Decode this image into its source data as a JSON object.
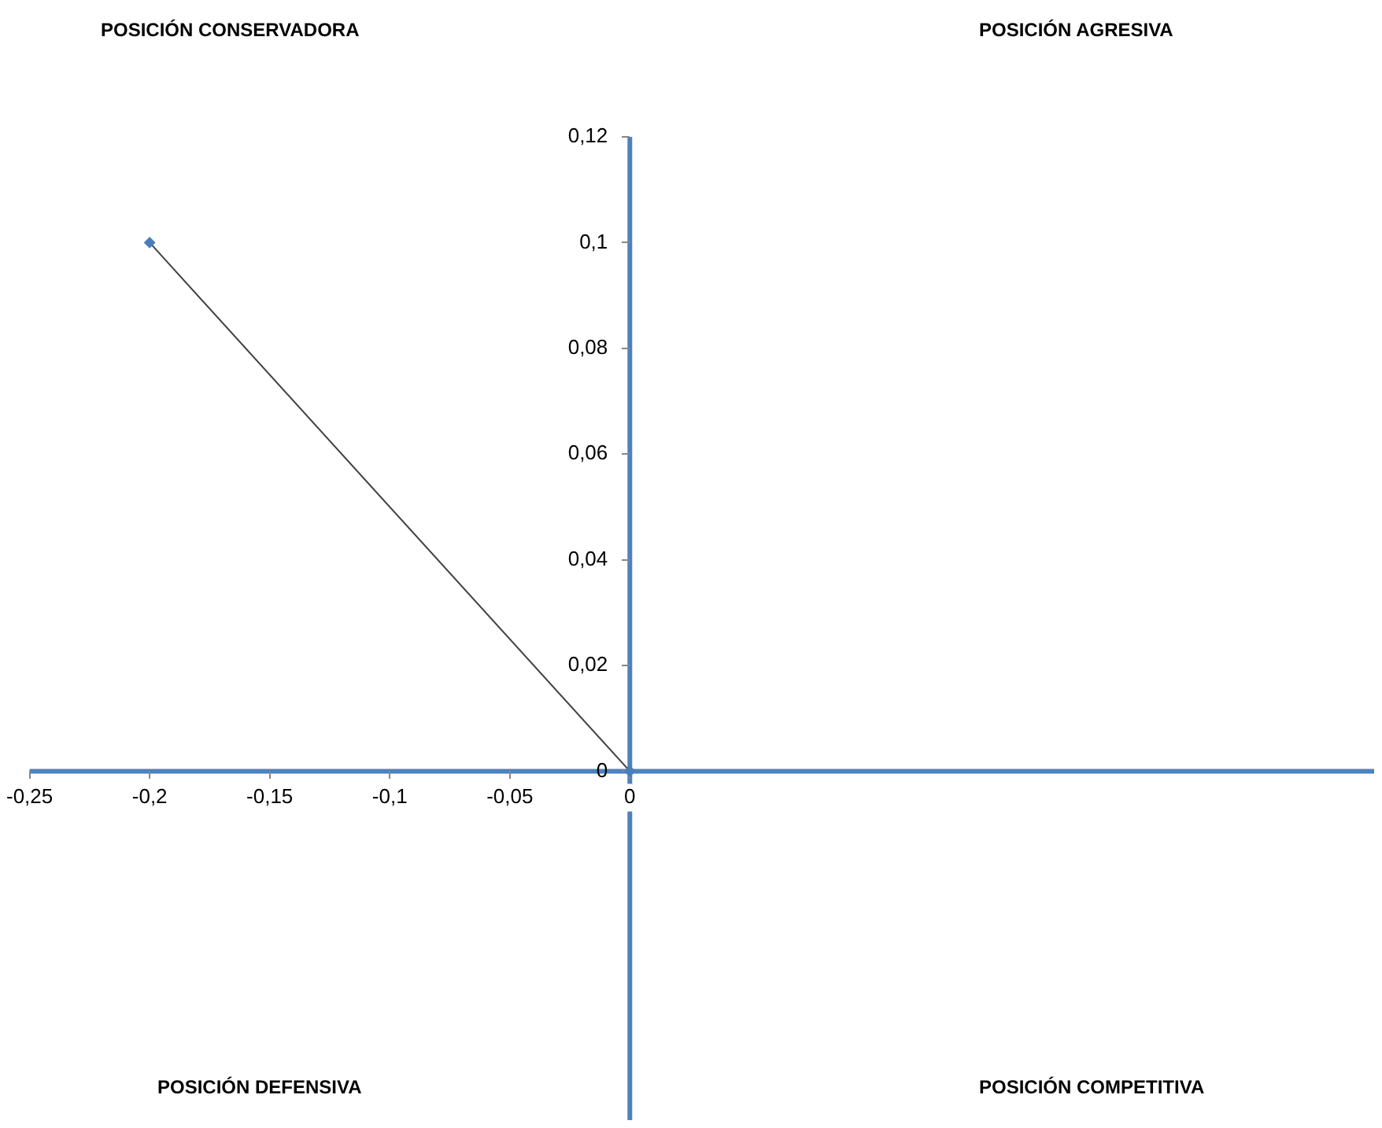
{
  "chart_data": {
    "type": "line",
    "x": [
      -0.2,
      0
    ],
    "series": [
      {
        "color": "#404040",
        "values": [
          0.1,
          0
        ]
      }
    ],
    "xlim": [
      -0.25,
      0.31
    ],
    "ylim": [
      -0.066,
      0.12
    ],
    "xticks": [
      {
        "value": -0.25,
        "label": "-0,25"
      },
      {
        "value": -0.2,
        "label": "-0,2"
      },
      {
        "value": -0.15,
        "label": "-0,15"
      },
      {
        "value": -0.1,
        "label": "-0,1"
      },
      {
        "value": -0.05,
        "label": "-0,05"
      },
      {
        "value": 0,
        "label": "0"
      }
    ],
    "yticks": [
      {
        "value": 0,
        "label": "0"
      },
      {
        "value": 0.02,
        "label": "0,02"
      },
      {
        "value": 0.04,
        "label": "0,04"
      },
      {
        "value": 0.06,
        "label": "0,06"
      },
      {
        "value": 0.08,
        "label": "0,08"
      },
      {
        "value": 0.1,
        "label": "0,1"
      },
      {
        "value": 0.12,
        "label": "0,12"
      }
    ],
    "annotations": [
      "POSICIÓN CONSERVADORA",
      "POSICIÓN AGRESIVA",
      "POSICIÓN DEFENSIVA",
      "POSICIÓN COMPETITIVA"
    ],
    "marker": "diamond",
    "line_style": "solid",
    "grid": false,
    "legend": false
  }
}
